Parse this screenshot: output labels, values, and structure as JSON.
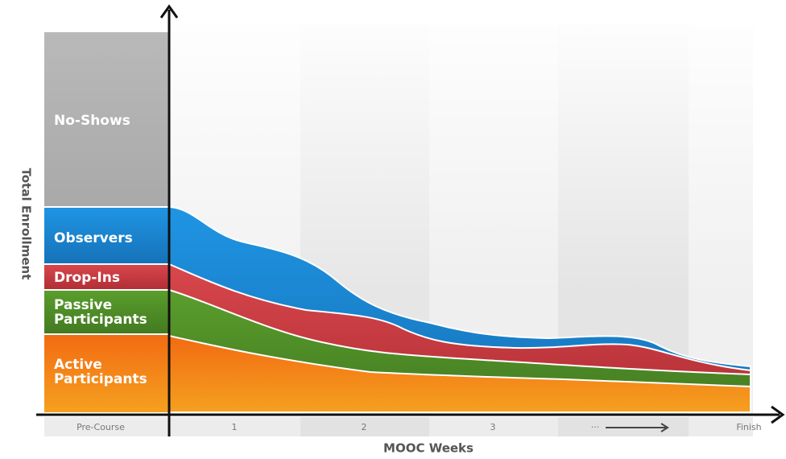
{
  "y_axis_label": "Total Enrollment",
  "x_axis_label": "MOOC Weeks",
  "segments": [
    {
      "lines": [
        "No-Shows"
      ]
    },
    {
      "lines": [
        "Observers"
      ]
    },
    {
      "lines": [
        "Drop-Ins"
      ]
    },
    {
      "lines": [
        "Passive",
        "Participants"
      ]
    },
    {
      "lines": [
        "Active",
        "Participants"
      ]
    }
  ],
  "x_labels": [
    "Pre-Course",
    "1",
    "2",
    "3",
    "···",
    "Finish"
  ]
}
